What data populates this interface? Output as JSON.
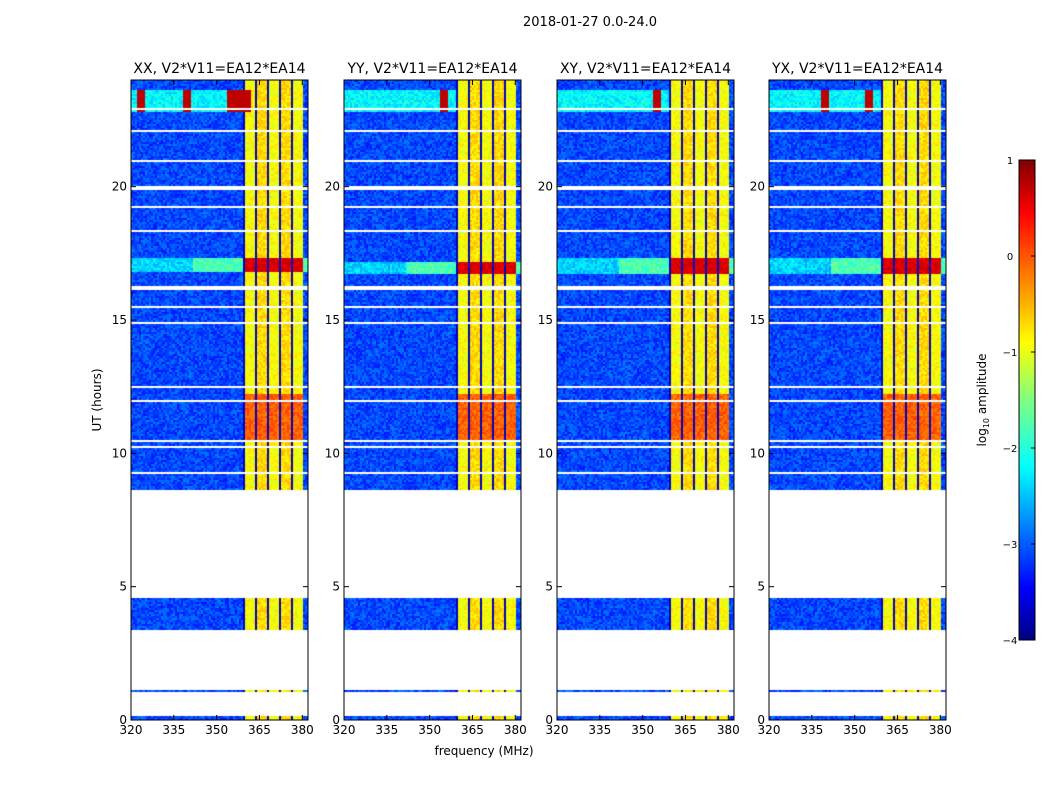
{
  "chart_data": {
    "type": "heatmap",
    "suptitle": "2018-01-27 0.0-24.0",
    "xlabel": "frequency (MHz)",
    "ylabel": "UT (hours)",
    "xlim": [
      320,
      382
    ],
    "ylim": [
      0,
      24
    ],
    "xticks": [
      320,
      335,
      350,
      365,
      380
    ],
    "xtick_labels": [
      "320",
      "335",
      "350",
      "365",
      "380"
    ],
    "yticks": [
      0,
      5,
      10,
      15,
      20
    ],
    "ytick_labels": [
      "0",
      "5",
      "10",
      "15",
      "20"
    ],
    "panels": [
      {
        "title": "XX, V2*V11=EA12*EA14",
        "rfi_band": [
          359,
          380
        ],
        "spike_freqs": [
          323,
          339,
          355,
          357.5,
          360
        ],
        "strong_hours": [
          16.8,
          17.3
        ]
      },
      {
        "title": "YY, V2*V11=EA12*EA14",
        "rfi_band": [
          359,
          380
        ],
        "spike_freqs": [
          355
        ],
        "strong_hours": [
          16.7,
          17.2
        ]
      },
      {
        "title": "XY, V2*V11=EA12*EA14",
        "rfi_band": [
          359,
          380
        ],
        "spike_freqs": [
          355
        ],
        "strong_hours": [
          16.7,
          17.3
        ]
      },
      {
        "title": "YX, V2*V11=EA12*EA14",
        "rfi_band": [
          359,
          380
        ],
        "spike_freqs": [
          339,
          355
        ],
        "strong_hours": [
          16.7,
          17.3
        ]
      }
    ],
    "coverage_hours": [
      [
        0.0,
        0.15
      ],
      [
        1.05,
        1.15
      ],
      [
        3.4,
        4.6
      ],
      [
        8.65,
        24.0
      ]
    ],
    "gap_hours": [
      9.28,
      10.25,
      10.45,
      11.95,
      12.5,
      14.9,
      15.5,
      16.2,
      18.35,
      19.25,
      19.95,
      20.95,
      22.1,
      22.9
    ],
    "colorbar": {
      "label": "log10 amplitude",
      "label_main": "log",
      "label_sub": "10",
      "label_rest": " amplitude",
      "range": [
        -4,
        1
      ],
      "ticks": [
        1,
        0,
        -1,
        -2,
        -3,
        -4
      ],
      "tick_labels": [
        "1",
        "0",
        "−1",
        "−2",
        "−3",
        "−4"
      ],
      "colormap": "jet"
    }
  }
}
